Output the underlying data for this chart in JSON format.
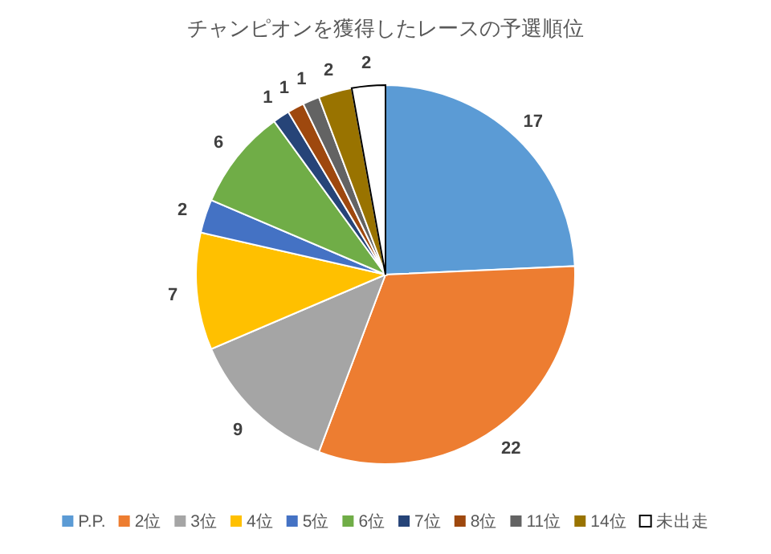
{
  "chart_data": {
    "type": "pie",
    "title": "チャンピオンを獲得したレースの予選順位",
    "categories": [
      "P.P.",
      "2位",
      "3位",
      "4位",
      "5位",
      "6位",
      "7位",
      "8位",
      "11位",
      "14位",
      "未出走"
    ],
    "values": [
      17,
      22,
      9,
      7,
      2,
      6,
      1,
      1,
      1,
      2,
      2
    ],
    "colors": [
      "#5b9bd5",
      "#ed7d31",
      "#a5a5a5",
      "#ffc000",
      "#4472c4",
      "#70ad47",
      "#264478",
      "#9e480e",
      "#636363",
      "#997300",
      "#ffffff"
    ],
    "data_labels": true,
    "legend": "bottom"
  }
}
